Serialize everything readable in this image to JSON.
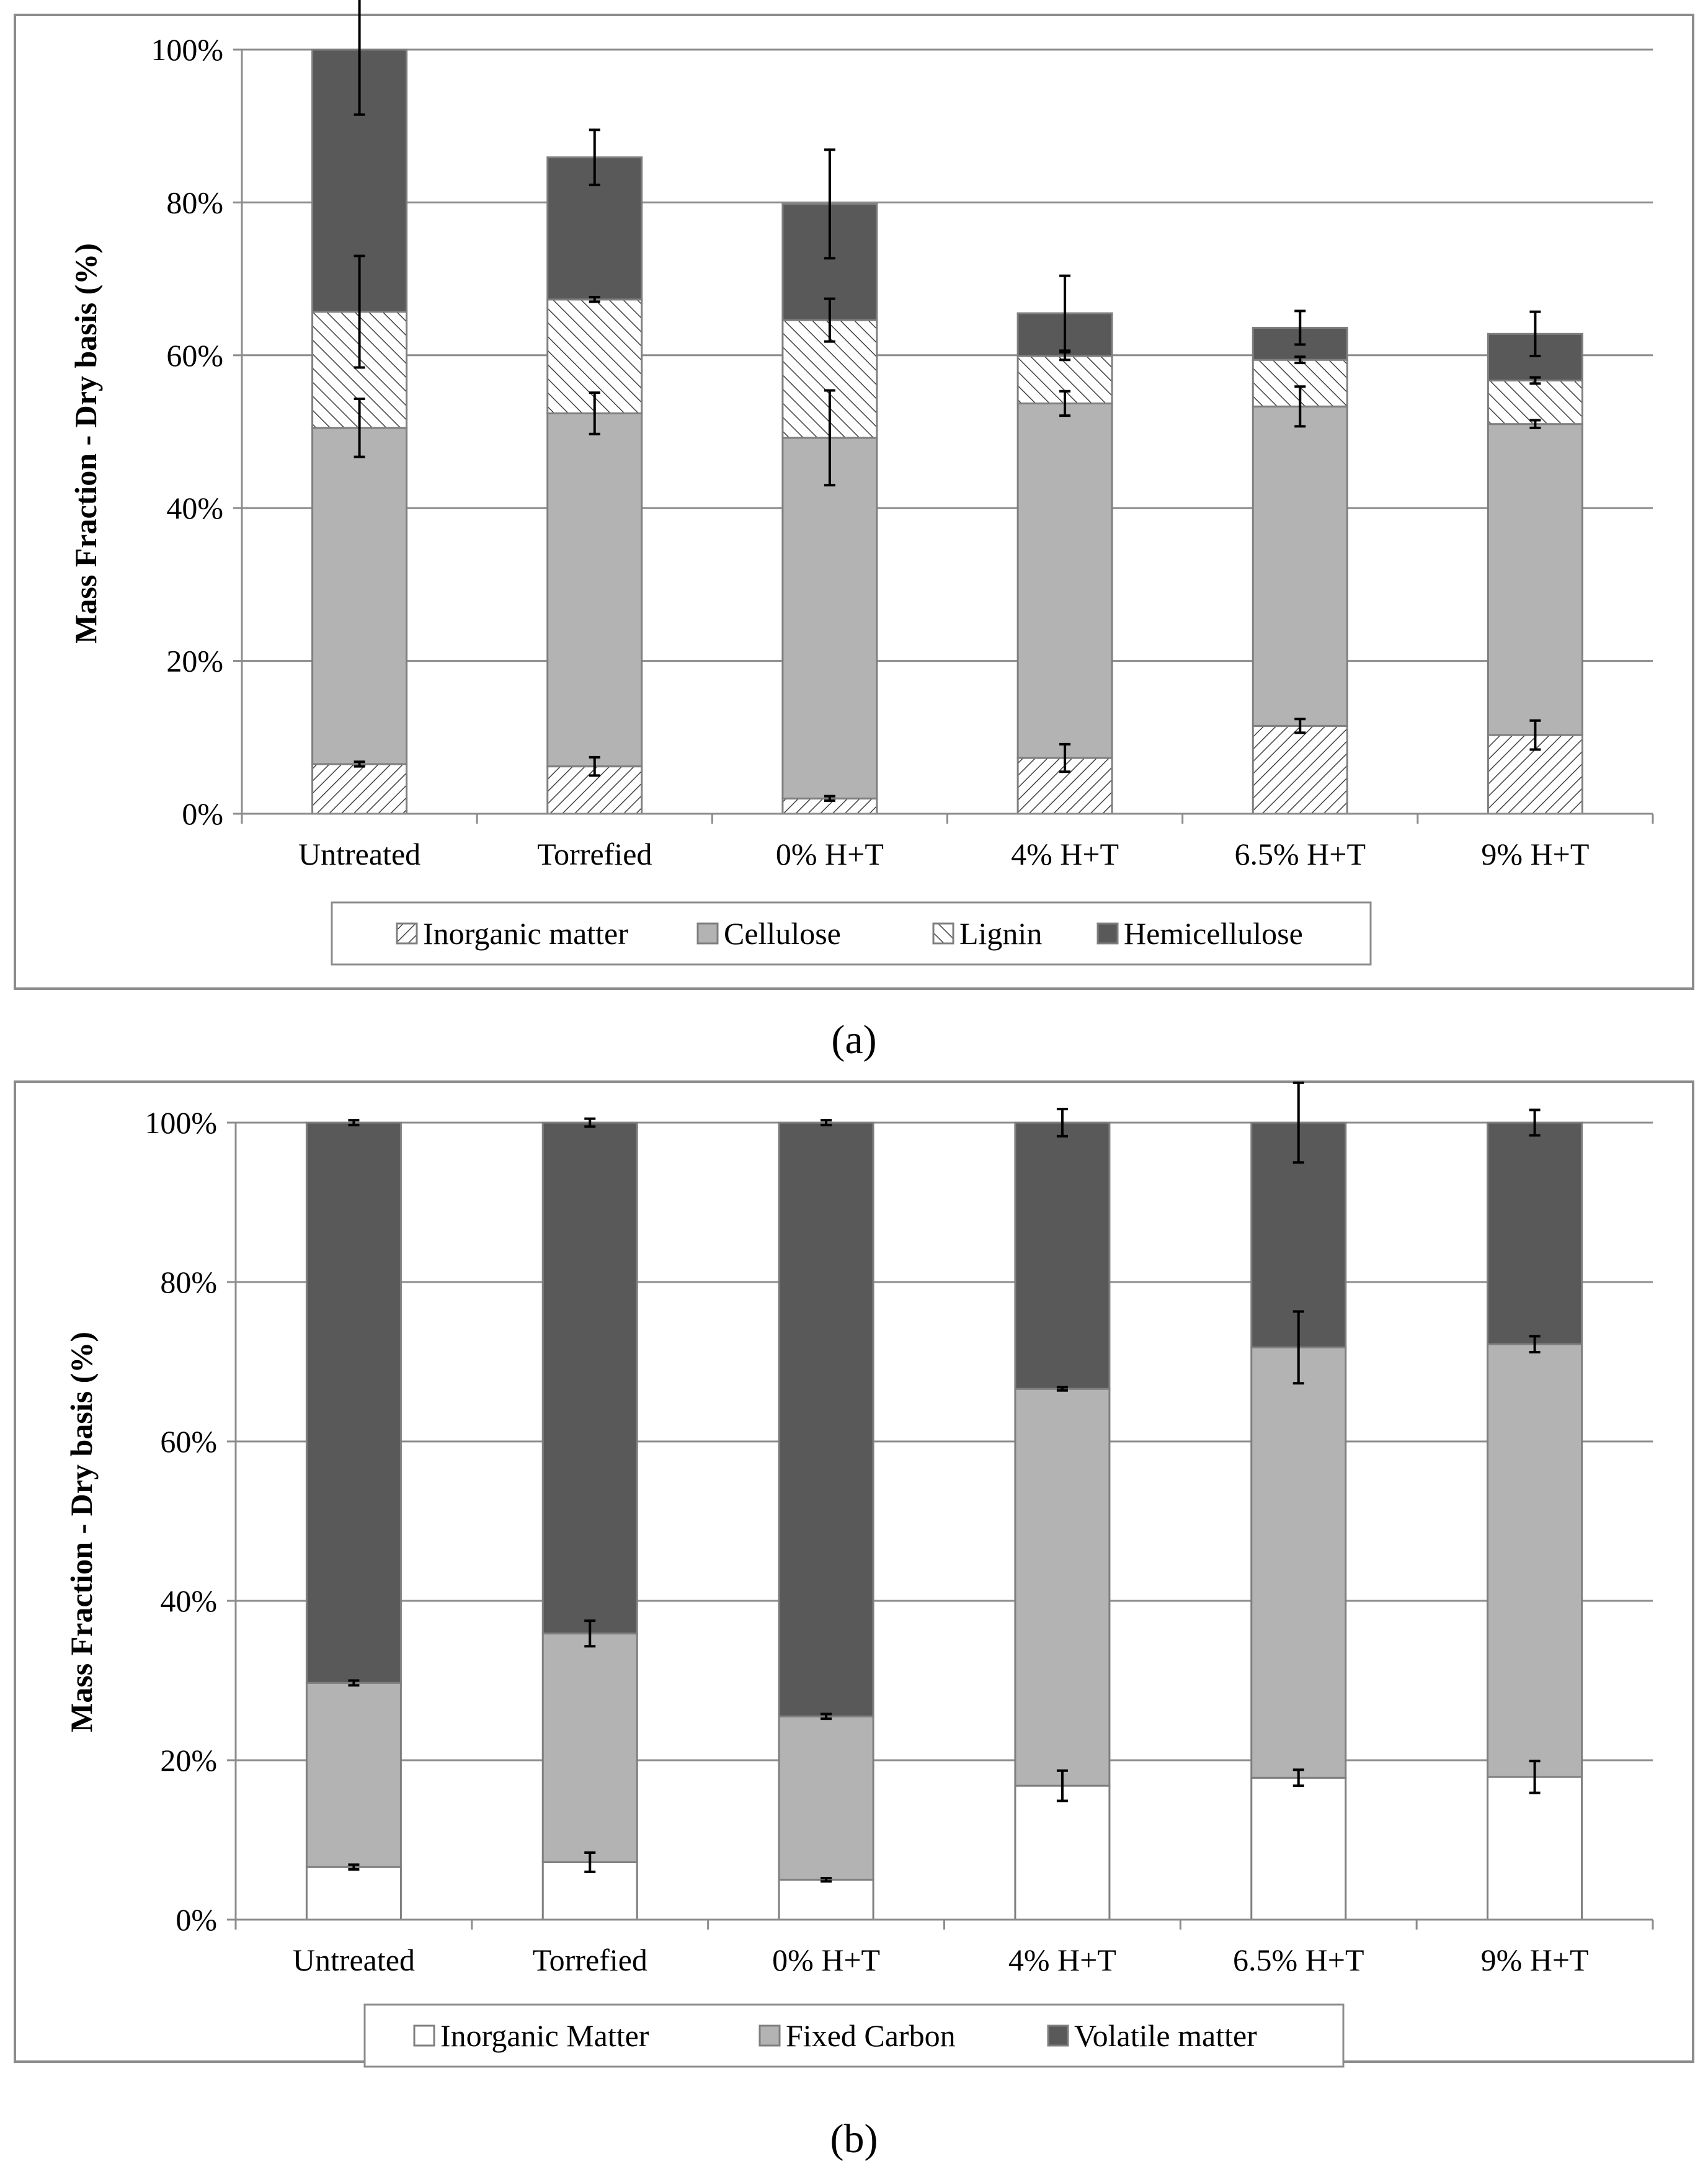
{
  "chart_data": [
    {
      "type": "bar",
      "stacked": true,
      "panel_label": "a",
      "ylabel": "Mass Fraction - Dry basis (%)",
      "ylim": [
        0,
        100
      ],
      "yticks": [
        "0%",
        "20%",
        "40%",
        "60%",
        "80%",
        "100%"
      ],
      "categories": [
        "Untreated",
        "Torrefied",
        "0% H+T",
        "4% H+T",
        "6.5% H+T",
        "9% H+T"
      ],
      "series": [
        {
          "name": "Inorganic matter",
          "pattern": "hatch-left",
          "values": [
            6.5,
            6.2,
            2.0,
            7.3,
            11.5,
            10.3
          ],
          "errors": [
            0.3,
            1.2,
            0.3,
            1.8,
            0.9,
            1.9
          ]
        },
        {
          "name": "Cellulose",
          "pattern": "solid-light",
          "values": [
            44.0,
            46.2,
            47.2,
            46.4,
            41.8,
            40.7
          ],
          "errors": [
            3.8,
            2.7,
            6.2,
            1.6,
            2.6,
            0.5
          ]
        },
        {
          "name": "Lignin",
          "pattern": "hatch-right",
          "values": [
            15.2,
            14.9,
            15.4,
            6.2,
            6.1,
            5.7
          ],
          "errors": [
            7.3,
            0.3,
            2.8,
            0.5,
            0.4,
            0.4
          ]
        },
        {
          "name": "Hemicellulose",
          "pattern": "solid-dark",
          "values": [
            34.3,
            18.6,
            15.2,
            5.6,
            4.2,
            6.1
          ],
          "errors": [
            8.5,
            3.6,
            7.1,
            4.9,
            2.2,
            2.9
          ]
        }
      ]
    },
    {
      "type": "bar",
      "stacked": true,
      "panel_label": "b",
      "ylabel": "Mass Fraction - Dry basis (%)",
      "ylim": [
        0,
        100
      ],
      "yticks": [
        "0%",
        "20%",
        "40%",
        "60%",
        "80%",
        "100%"
      ],
      "categories": [
        "Untreated",
        "Torrefied",
        "0% H+T",
        "4% H+T",
        "6.5% H+T",
        "9% H+T"
      ],
      "series": [
        {
          "name": "Inorganic Matter",
          "pattern": "white",
          "values": [
            6.6,
            7.2,
            5.0,
            16.8,
            17.8,
            17.9
          ],
          "errors": [
            0.3,
            1.2,
            0.2,
            1.9,
            1.0,
            2.0
          ]
        },
        {
          "name": "Fixed Carbon",
          "pattern": "solid-light",
          "values": [
            23.1,
            28.7,
            20.5,
            49.8,
            54.0,
            54.3
          ],
          "errors": [
            0.3,
            1.6,
            0.3,
            0.2,
            4.5,
            1.0
          ]
        },
        {
          "name": "Volatile matter",
          "pattern": "solid-dark",
          "values": [
            70.3,
            64.1,
            74.5,
            33.4,
            28.2,
            27.8
          ],
          "errors": [
            0.3,
            0.5,
            0.3,
            1.7,
            5.0,
            1.6
          ]
        }
      ]
    }
  ],
  "captions": [
    "(a)",
    "(b)"
  ],
  "colors": {
    "dark": "#595959",
    "light": "#b3b3b3",
    "border": "#7f7f7f",
    "grid": "#8c8c8c"
  }
}
